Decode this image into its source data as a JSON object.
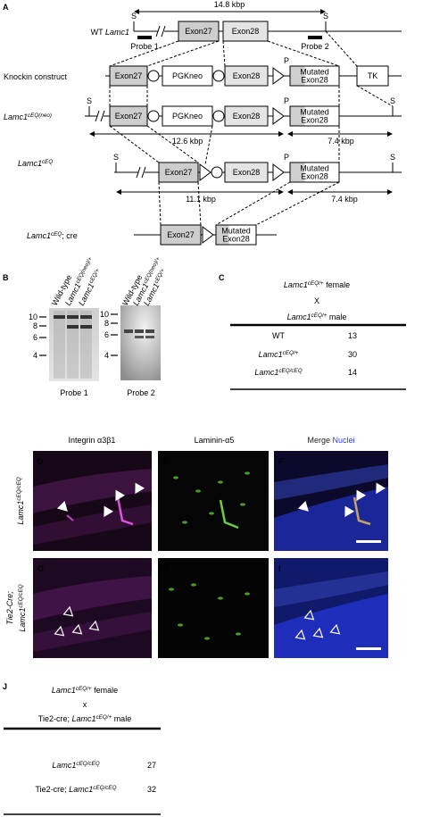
{
  "panel_a": {
    "letter": "A",
    "wt_span": "14.8 kbp",
    "site": "S",
    "promoter": "P",
    "rows": {
      "wt": {
        "prefix": "WT ",
        "name": "Lamc1"
      },
      "knockin": "Knockin construct",
      "neo": {
        "name": "Lamc1",
        "sup": "cEQ(neo)"
      },
      "ceq": {
        "name": "Lamc1",
        "sup": "cEQ"
      },
      "cre": {
        "name": "Lamc1",
        "sup": "cEQ",
        "rest": "; cre"
      }
    },
    "probes": [
      "Probe 1",
      "Probe 2"
    ],
    "boxes": {
      "exon27": "Exon27",
      "exon28": "Exon28",
      "pgkneo": "PGKneo",
      "mutated": [
        "Mutated",
        "Exon28"
      ],
      "tk": "TK"
    },
    "spans": {
      "neo": [
        "12.6 kbp",
        "7.4 kbp"
      ],
      "ceq": [
        "11.1 kbp",
        "7.4 kbp"
      ]
    }
  },
  "panel_b": {
    "letter": "B",
    "lanes": [
      "Wild-type",
      {
        "name": "Lamc1",
        "sup": "cEQ(neo)/+"
      },
      {
        "name": "Lamc1",
        "sup": "cEQ/+"
      }
    ],
    "size_ticks": [
      10,
      8,
      6,
      4
    ],
    "blots": [
      "Probe 1",
      "Probe 2"
    ]
  },
  "panel_c": {
    "letter": "C",
    "female": {
      "name": "Lamc1",
      "sup": "cEQ/+",
      "rest": " female"
    },
    "by": "X",
    "male": {
      "name": "Lamc1",
      "sup": "cEQ/+",
      "rest": " male"
    },
    "rows": [
      [
        "WT",
        13
      ],
      [
        {
          "name": "Lamc1",
          "sup": "cEQ/+"
        },
        30
      ],
      [
        {
          "name": "Lamc1",
          "sup": "cEQ/cEQ"
        },
        14
      ]
    ]
  },
  "panel_d_i": {
    "columns": [
      "Integrin α3β1",
      "Laminin-α5",
      "Merge",
      "Nuclei"
    ],
    "letters": [
      "D",
      "E",
      "F",
      "G",
      "H",
      "I"
    ],
    "row_labels": [
      {
        "name": "Lamc1",
        "sup": "cEQ/cEQ"
      },
      {
        "name": "Lamc1",
        "sup": "cEQ/cEQ"
      }
    ],
    "row2_line1": "Tie2-Cre;"
  },
  "panel_j": {
    "letter": "J",
    "female": {
      "name": "Lamc1",
      "sup": "cEQ/+",
      "rest": " female"
    },
    "by": "x",
    "male": {
      "prefix": "Tie2-cre; ",
      "name": "Lamc1",
      "sup": "cEQ/+",
      "rest": " male"
    },
    "rows": [
      [
        {
          "name": "Lamc1",
          "sup": "cEQ/cEQ"
        },
        27
      ],
      [
        {
          "prefix": "Tie2-cre; ",
          "name": "Lamc1",
          "sup": "cEQ/cEQ"
        },
        32
      ]
    ]
  }
}
